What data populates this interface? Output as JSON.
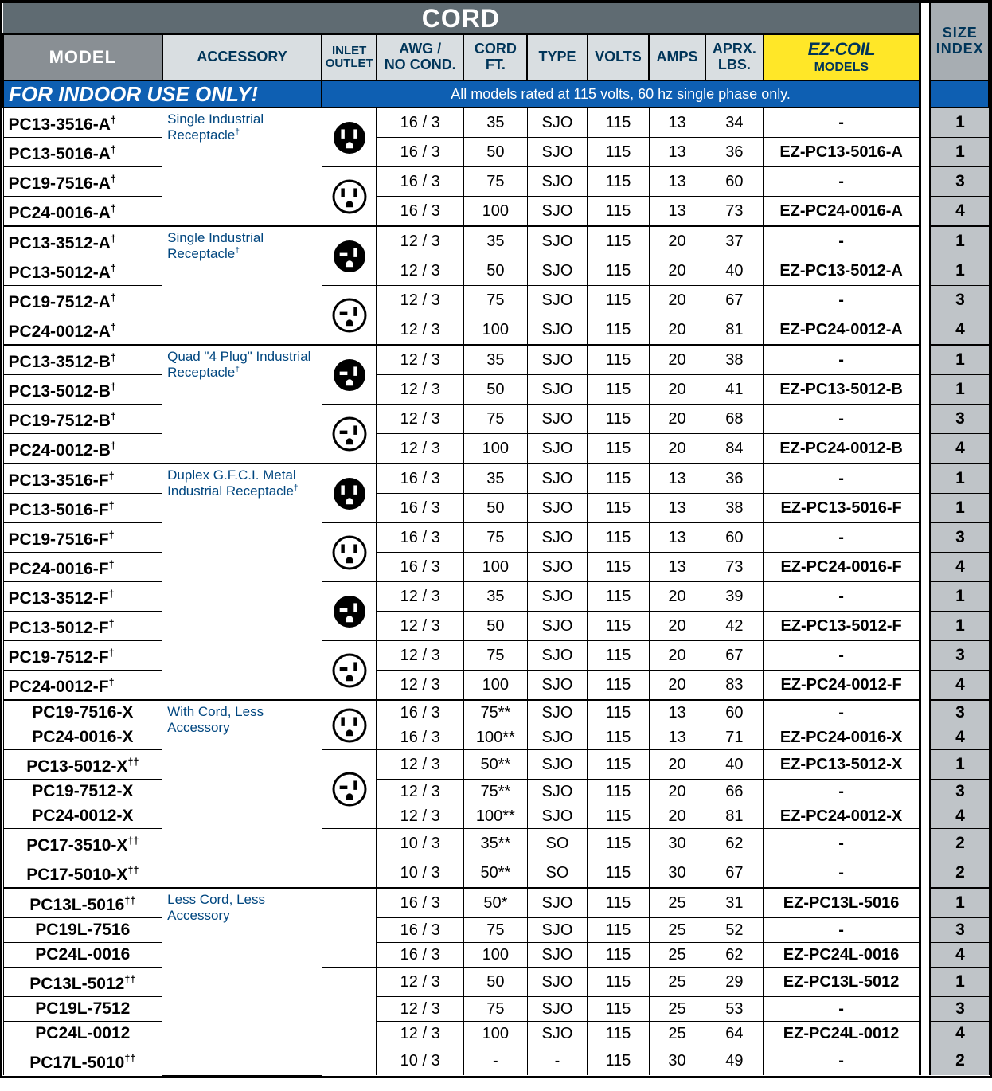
{
  "title": "CORD",
  "size_index_label": "SIZE\nINDEX",
  "headers": {
    "model": "MODEL",
    "accessory": "ACCESSORY",
    "inlet": "INLET\nOUTLET",
    "awg": "AWG /\nNO COND.",
    "cord": "CORD\nFT.",
    "type": "TYPE",
    "volts": "VOLTS",
    "amps": "AMPS",
    "lbs": "APRX.\nLBS.",
    "ez_logo": "EZ-COIL",
    "ez_models": "MODELS"
  },
  "banner": {
    "indoor": "FOR INDOOR USE ONLY!",
    "rated": "All models rated at 115 volts, 60 hz single phase only."
  },
  "cols": {
    "model": 175,
    "acc": 176,
    "inlet": 60,
    "awg": 96,
    "cord": 70,
    "type": 66,
    "volts": 68,
    "amps": 62,
    "lbs": 64,
    "ez": 172,
    "sep": 12,
    "size": 64
  },
  "accessory_labels": {
    "a1": "Single Industrial Receptacle†",
    "a2": "Single Industrial Receptacle†",
    "b": "Quad \"4 Plug\" Industrial Receptacle†",
    "f": "Duplex G.F.C.I. Metal Industrial Receptacle†",
    "x": "With Cord, Less Accessory",
    "l": "Less Cord, Less Accessory"
  },
  "groups": [
    {
      "acc": "a1",
      "model_align": "l",
      "outlets": [
        "filled3",
        "open3"
      ],
      "rows": [
        {
          "m": "PC13-3516-A†",
          "awg": "16 / 3",
          "ft": "35",
          "t": "SJO",
          "v": "115",
          "a": "13",
          "lb": "34",
          "ez": "-",
          "sz": "1"
        },
        {
          "m": "PC13-5016-A†",
          "awg": "16 / 3",
          "ft": "50",
          "t": "SJO",
          "v": "115",
          "a": "13",
          "lb": "36",
          "ez": "EZ-PC13-5016-A",
          "sz": "1"
        },
        {
          "m": "PC19-7516-A†",
          "awg": "16 / 3",
          "ft": "75",
          "t": "SJO",
          "v": "115",
          "a": "13",
          "lb": "60",
          "ez": "-",
          "sz": "3"
        },
        {
          "m": "PC24-0016-A†",
          "awg": "16 / 3",
          "ft": "100",
          "t": "SJO",
          "v": "115",
          "a": "13",
          "lb": "73",
          "ez": "EZ-PC24-0016-A",
          "sz": "4"
        }
      ]
    },
    {
      "acc": "a2",
      "model_align": "l",
      "outlets": [
        "filled3b",
        "open3b"
      ],
      "rows": [
        {
          "m": "PC13-3512-A†",
          "awg": "12 / 3",
          "ft": "35",
          "t": "SJO",
          "v": "115",
          "a": "20",
          "lb": "37",
          "ez": "-",
          "sz": "1"
        },
        {
          "m": "PC13-5012-A†",
          "awg": "12 / 3",
          "ft": "50",
          "t": "SJO",
          "v": "115",
          "a": "20",
          "lb": "40",
          "ez": "EZ-PC13-5012-A",
          "sz": "1"
        },
        {
          "m": "PC19-7512-A†",
          "awg": "12 / 3",
          "ft": "75",
          "t": "SJO",
          "v": "115",
          "a": "20",
          "lb": "67",
          "ez": "-",
          "sz": "3"
        },
        {
          "m": "PC24-0012-A†",
          "awg": "12 / 3",
          "ft": "100",
          "t": "SJO",
          "v": "115",
          "a": "20",
          "lb": "81",
          "ez": "EZ-PC24-0012-A",
          "sz": "4"
        }
      ]
    },
    {
      "acc": "b",
      "model_align": "l",
      "outlets": [
        "filled3b",
        "open3b"
      ],
      "rows": [
        {
          "m": "PC13-3512-B†",
          "awg": "12 / 3",
          "ft": "35",
          "t": "SJO",
          "v": "115",
          "a": "20",
          "lb": "38",
          "ez": "-",
          "sz": "1"
        },
        {
          "m": "PC13-5012-B†",
          "awg": "12 / 3",
          "ft": "50",
          "t": "SJO",
          "v": "115",
          "a": "20",
          "lb": "41",
          "ez": "EZ-PC13-5012-B",
          "sz": "1"
        },
        {
          "m": "PC19-7512-B†",
          "awg": "12 / 3",
          "ft": "75",
          "t": "SJO",
          "v": "115",
          "a": "20",
          "lb": "68",
          "ez": "-",
          "sz": "3"
        },
        {
          "m": "PC24-0012-B†",
          "awg": "12 / 3",
          "ft": "100",
          "t": "SJO",
          "v": "115",
          "a": "20",
          "lb": "84",
          "ez": "EZ-PC24-0012-B",
          "sz": "4"
        }
      ]
    },
    {
      "acc": "f",
      "model_align": "l",
      "outlets": [
        "filled3",
        "open3",
        "filled3b",
        "open3b"
      ],
      "outlet_span": 2,
      "rows": [
        {
          "m": "PC13-3516-F†",
          "awg": "16 / 3",
          "ft": "35",
          "t": "SJO",
          "v": "115",
          "a": "13",
          "lb": "36",
          "ez": "-",
          "sz": "1"
        },
        {
          "m": "PC13-5016-F†",
          "awg": "16 / 3",
          "ft": "50",
          "t": "SJO",
          "v": "115",
          "a": "13",
          "lb": "38",
          "ez": "EZ-PC13-5016-F",
          "sz": "1"
        },
        {
          "m": "PC19-7516-F†",
          "awg": "16 / 3",
          "ft": "75",
          "t": "SJO",
          "v": "115",
          "a": "13",
          "lb": "60",
          "ez": "-",
          "sz": "3"
        },
        {
          "m": "PC24-0016-F†",
          "awg": "16 / 3",
          "ft": "100",
          "t": "SJO",
          "v": "115",
          "a": "13",
          "lb": "73",
          "ez": "EZ-PC24-0016-F",
          "sz": "4"
        },
        {
          "m": "PC13-3512-F†",
          "awg": "12 / 3",
          "ft": "35",
          "t": "SJO",
          "v": "115",
          "a": "20",
          "lb": "39",
          "ez": "-",
          "sz": "1"
        },
        {
          "m": "PC13-5012-F†",
          "awg": "12 / 3",
          "ft": "50",
          "t": "SJO",
          "v": "115",
          "a": "20",
          "lb": "42",
          "ez": "EZ-PC13-5012-F",
          "sz": "1"
        },
        {
          "m": "PC19-7512-F†",
          "awg": "12 / 3",
          "ft": "75",
          "t": "SJO",
          "v": "115",
          "a": "20",
          "lb": "67",
          "ez": "-",
          "sz": "3"
        },
        {
          "m": "PC24-0012-F†",
          "awg": "12 / 3",
          "ft": "100",
          "t": "SJO",
          "v": "115",
          "a": "20",
          "lb": "83",
          "ez": "EZ-PC24-0012-F",
          "sz": "4"
        }
      ]
    },
    {
      "acc": "x",
      "model_align": "c",
      "outlets": [
        "open3",
        "open3b",
        "blank"
      ],
      "outlet_rows": [
        2,
        3,
        2
      ],
      "rows": [
        {
          "m": "PC19-7516-X",
          "awg": "16 / 3",
          "ft": "75**",
          "t": "SJO",
          "v": "115",
          "a": "13",
          "lb": "60",
          "ez": "-",
          "sz": "3"
        },
        {
          "m": "PC24-0016-X",
          "awg": "16 / 3",
          "ft": "100**",
          "t": "SJO",
          "v": "115",
          "a": "13",
          "lb": "71",
          "ez": "EZ-PC24-0016-X",
          "sz": "4"
        },
        {
          "m": "PC13-5012-X††",
          "awg": "12 / 3",
          "ft": "50**",
          "t": "SJO",
          "v": "115",
          "a": "20",
          "lb": "40",
          "ez": "EZ-PC13-5012-X",
          "sz": "1"
        },
        {
          "m": "PC19-7512-X",
          "awg": "12 / 3",
          "ft": "75**",
          "t": "SJO",
          "v": "115",
          "a": "20",
          "lb": "66",
          "ez": "-",
          "sz": "3"
        },
        {
          "m": "PC24-0012-X",
          "awg": "12 / 3",
          "ft": "100**",
          "t": "SJO",
          "v": "115",
          "a": "20",
          "lb": "81",
          "ez": "EZ-PC24-0012-X",
          "sz": "4"
        },
        {
          "m": "PC17-3510-X††",
          "awg": "10 / 3",
          "ft": "35**",
          "t": "SO",
          "v": "115",
          "a": "30",
          "lb": "62",
          "ez": "-",
          "sz": "2"
        },
        {
          "m": "PC17-5010-X††",
          "awg": "10 / 3",
          "ft": "50**",
          "t": "SO",
          "v": "115",
          "a": "30",
          "lb": "67",
          "ez": "-",
          "sz": "2"
        }
      ]
    },
    {
      "acc": "l",
      "model_align": "c",
      "outlets": [
        "blank",
        "blank",
        "blank"
      ],
      "outlet_rows": [
        3,
        3,
        1
      ],
      "rows": [
        {
          "m": "PC13L-5016††",
          "awg": "16 / 3",
          "ft": "50*",
          "t": "SJO",
          "v": "115",
          "a": "25",
          "lb": "31",
          "ez": "EZ-PC13L-5016",
          "sz": "1"
        },
        {
          "m": "PC19L-7516",
          "awg": "16 / 3",
          "ft": "75",
          "t": "SJO",
          "v": "115",
          "a": "25",
          "lb": "52",
          "ez": "-",
          "sz": "3"
        },
        {
          "m": "PC24L-0016",
          "awg": "16 / 3",
          "ft": "100",
          "t": "SJO",
          "v": "115",
          "a": "25",
          "lb": "62",
          "ez": "EZ-PC24L-0016",
          "sz": "4"
        },
        {
          "m": "PC13L-5012††",
          "awg": "12 / 3",
          "ft": "50",
          "t": "SJO",
          "v": "115",
          "a": "25",
          "lb": "29",
          "ez": "EZ-PC13L-5012",
          "sz": "1"
        },
        {
          "m": "PC19L-7512",
          "awg": "12 / 3",
          "ft": "75",
          "t": "SJO",
          "v": "115",
          "a": "25",
          "lb": "53",
          "ez": "-",
          "sz": "3"
        },
        {
          "m": "PC24L-0012",
          "awg": "12 / 3",
          "ft": "100",
          "t": "SJO",
          "v": "115",
          "a": "25",
          "lb": "64",
          "ez": "EZ-PC24L-0012",
          "sz": "4"
        },
        {
          "m": "PC17L-5010††",
          "awg": "10 / 3",
          "ft": "-",
          "t": "-",
          "v": "115",
          "a": "30",
          "lb": "49",
          "ez": "-",
          "sz": "2"
        }
      ]
    }
  ],
  "colors": {
    "title_bg": "#5f6b72",
    "hdr_bg": "#d9dee1",
    "hdr_model": "#898f94",
    "size_title_bg": "#a7adb2",
    "ez_bg": "#ffe728",
    "banner_bg": "#0e5fb2",
    "size_bg": "#bfc4c8",
    "text_navy": "#003559"
  },
  "outlet_svg_size": 44
}
